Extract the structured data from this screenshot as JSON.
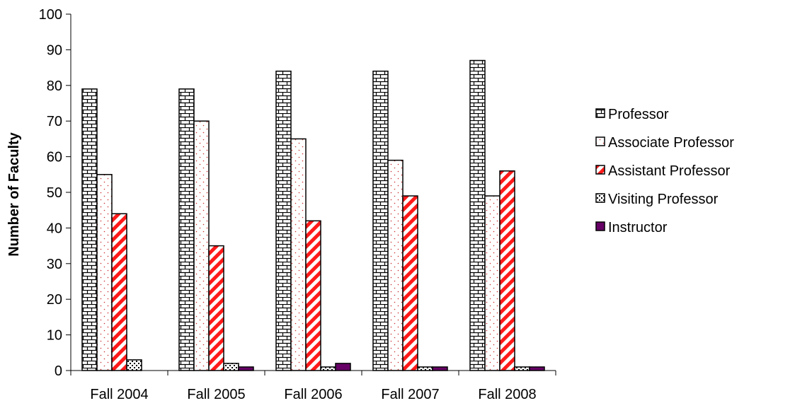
{
  "chart_data": {
    "type": "bar",
    "title": "",
    "xlabel": "",
    "ylabel": "Number of Faculty",
    "ylim": [
      0,
      100
    ],
    "yticks": [
      0,
      10,
      20,
      30,
      40,
      50,
      60,
      70,
      80,
      90,
      100
    ],
    "categories": [
      "Fall 2004",
      "Fall 2005",
      "Fall 2006",
      "Fall 2007",
      "Fall 2008"
    ],
    "grid": false,
    "legend_position": "right",
    "series": [
      {
        "name": "Professor",
        "pattern": "brick",
        "color": "#000000",
        "values": [
          79,
          79,
          84,
          84,
          87
        ]
      },
      {
        "name": "Associate Professor",
        "pattern": "dotted",
        "color": "#cc0000",
        "values": [
          55,
          70,
          65,
          59,
          49
        ]
      },
      {
        "name": "Assistant Professor",
        "pattern": "diagonal-stripes",
        "color": "#ff0000",
        "values": [
          44,
          35,
          42,
          49,
          56
        ]
      },
      {
        "name": "Visiting Professor",
        "pattern": "checker",
        "color": "#000000",
        "values": [
          3,
          2,
          1,
          1,
          1
        ]
      },
      {
        "name": "Instructor",
        "pattern": "solid",
        "color": "#660066",
        "values": [
          0,
          1,
          2,
          1,
          1
        ]
      }
    ]
  }
}
